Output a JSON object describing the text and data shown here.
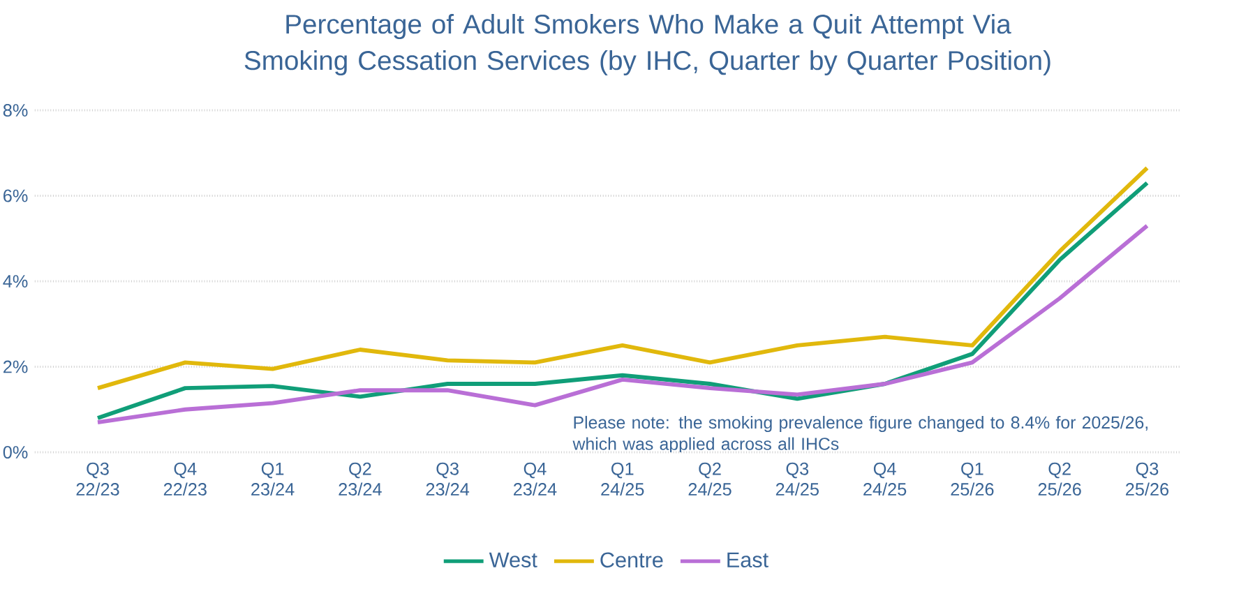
{
  "chart_data": {
    "type": "line",
    "title": "Percentage of Adult Smokers Who Make a Quit Attempt Via Smoking Cessation Services (by IHC, Quarter by Quarter Position)",
    "categories": [
      "Q3 22/23",
      "Q4 22/23",
      "Q1 23/24",
      "Q2 23/24",
      "Q3 23/24",
      "Q4 23/24",
      "Q1 24/25",
      "Q2 24/25",
      "Q3 24/25",
      "Q4 24/25",
      "Q1 25/26",
      "Q2 25/26",
      "Q3 25/26"
    ],
    "series": [
      {
        "name": "West",
        "color": "#109e78",
        "values": [
          0.8,
          1.5,
          1.55,
          1.3,
          1.6,
          1.6,
          1.8,
          1.6,
          1.25,
          1.6,
          2.3,
          4.5,
          6.3
        ]
      },
      {
        "name": "Centre",
        "color": "#e1b80c",
        "values": [
          1.5,
          2.1,
          1.95,
          2.4,
          2.15,
          2.1,
          2.5,
          2.1,
          2.5,
          2.7,
          2.5,
          4.7,
          6.65
        ]
      },
      {
        "name": "East",
        "color": "#b96fd6",
        "values": [
          0.7,
          1.0,
          1.15,
          1.45,
          1.45,
          1.1,
          1.7,
          1.5,
          1.35,
          1.6,
          2.1,
          3.6,
          5.3
        ]
      }
    ],
    "ylim": [
      0,
      8
    ],
    "yticks": [
      {
        "value": 0,
        "label": "0%"
      },
      {
        "value": 2,
        "label": "2%"
      },
      {
        "value": 4,
        "label": "4%"
      },
      {
        "value": 6,
        "label": "6%"
      },
      {
        "value": 8,
        "label": "8%"
      }
    ],
    "grid": "y",
    "legend": "bottom",
    "marker": "none",
    "line_style": "solid",
    "annotations": [
      "Please note: the smoking prevalence figure changed to 8.4% for 2025/26, which was applied across all IHCs"
    ]
  }
}
